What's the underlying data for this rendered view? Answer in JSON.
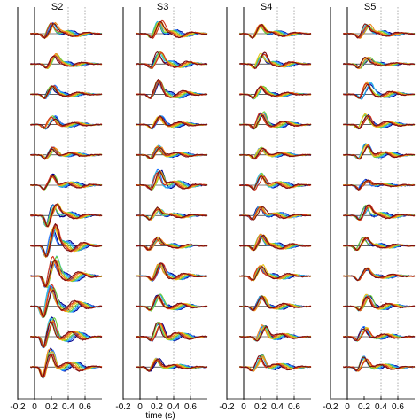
{
  "chart_data": {
    "type": "line",
    "panels": [
      {
        "title": "S2"
      },
      {
        "title": "S3"
      },
      {
        "title": "S4"
      },
      {
        "title": "S5"
      }
    ],
    "rows_per_panel": 12,
    "x_ticks": [
      "-0.2",
      "0",
      "0.2",
      "0.4",
      "0.6"
    ],
    "xlabel": "time (s)",
    "xlim": [
      -0.2,
      0.8
    ],
    "dotted_reference_times": [
      0.6
    ],
    "zero_line_time": 0,
    "grid": false,
    "legend": "none",
    "series_colors": [
      "#00008b",
      "#1f77ff",
      "#2ab7e0",
      "#6fcf3a",
      "#e8c51a",
      "#f08a1c",
      "#d0311a",
      "#7a0f0f"
    ],
    "peak_latency_s": 0.2,
    "peak_amplitude_by_panel": [
      0.7,
      0.8,
      0.7,
      0.6
    ]
  }
}
